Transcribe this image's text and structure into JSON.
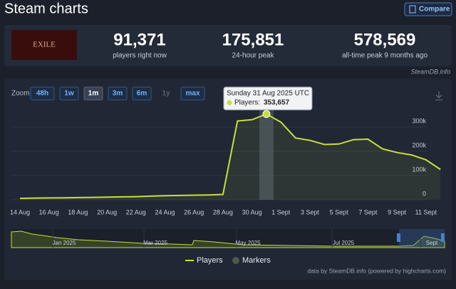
{
  "header": {
    "title": "Steam charts",
    "compare": "Compare"
  },
  "stats": [
    {
      "value": "91,371",
      "label": "players right now"
    },
    {
      "value": "175,851",
      "label": "24-hour peak"
    },
    {
      "value": "578,569",
      "label": "all-time peak 9 months ago"
    }
  ],
  "source": "SteamDB.info",
  "zoom": {
    "label": "Zoom",
    "options": [
      "48h",
      "1w",
      "1m",
      "3m",
      "6m",
      "1y",
      "max"
    ],
    "active": "1m",
    "disabled": [
      "1y"
    ]
  },
  "chart_data": {
    "type": "line",
    "categories": [
      "14 Aug",
      null,
      "16 Aug",
      null,
      "18 Aug",
      null,
      "20 Aug",
      null,
      "22 Aug",
      null,
      "24 Aug",
      null,
      "26 Aug",
      null,
      "28 Aug",
      null,
      "30 Aug",
      null,
      "1 Sept",
      null,
      "3 Sept",
      null,
      "5 Sept",
      null,
      "7 Sept",
      null,
      "9 Sept",
      null,
      "11 Sept",
      null
    ],
    "series": [
      {
        "name": "Players",
        "color": "#c6e03a",
        "values": [
          6000,
          7000,
          7500,
          8000,
          9000,
          10000,
          11000,
          12000,
          13000,
          15000,
          17000,
          18000,
          19000,
          20000,
          22000,
          325000,
          330000,
          353657,
          320000,
          255000,
          245000,
          228000,
          230000,
          248000,
          250000,
          210000,
          195000,
          185000,
          165000,
          125000
        ]
      }
    ],
    "ylim": [
      0,
      400000
    ],
    "yticks": [
      0,
      {
        "value": 100000,
        "label": "100k"
      },
      {
        "value": 200000,
        "label": "200k"
      },
      {
        "value": 300000,
        "label": "300k"
      }
    ],
    "tooltip": {
      "index": 17,
      "title": "Sunday 31 Aug 2025 UTC",
      "name_label": "Players:",
      "value_label": "353,657"
    },
    "legend": [
      "Players",
      "Markers"
    ],
    "navigator_labels": [
      "Jan 2025",
      "Mar 2025",
      "May 2025",
      "Jul 2025",
      "Sept"
    ]
  },
  "credits": "data by SteamDB.info (powered by highcharts.com)"
}
